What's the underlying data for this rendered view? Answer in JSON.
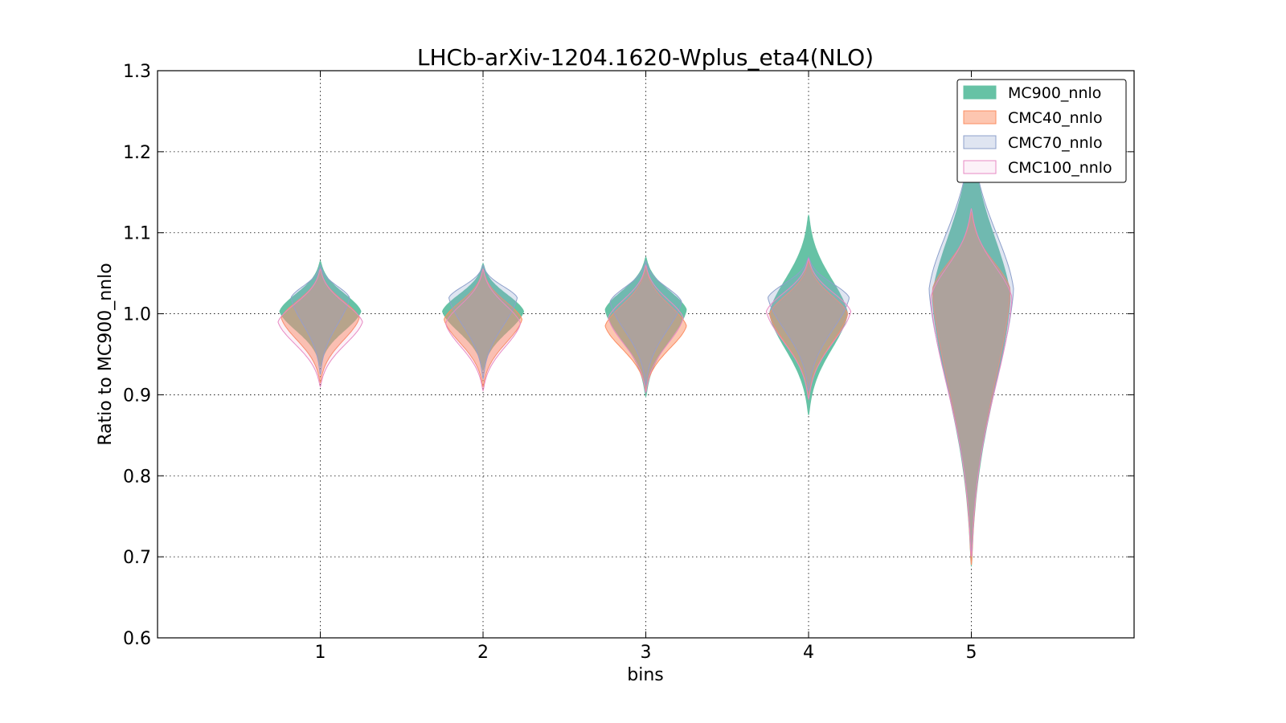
{
  "chart_data": {
    "type": "violin",
    "title": "LHCb-arXiv-1204.1620-Wplus_eta4(NLO)",
    "xlabel": "bins",
    "ylabel": "Ratio to MC900_nnlo",
    "ylim": [
      0.6,
      1.3
    ],
    "xlim": [
      0,
      6
    ],
    "x_ticks": [
      "1",
      "2",
      "3",
      "4",
      "5"
    ],
    "y_ticks": [
      "0.6",
      "0.7",
      "0.8",
      "0.9",
      "1.0",
      "1.1",
      "1.2",
      "1.3"
    ],
    "grid": true,
    "legend_position": "top-right",
    "series": [
      {
        "name": "MC900_nnlo",
        "fill": "#66c2a5",
        "stroke": "#66c2a5",
        "fill_opacity": 1.0,
        "violins": [
          {
            "bin": 1,
            "min": 0.935,
            "max": 1.065,
            "center": 1.003,
            "half_width": 0.25
          },
          {
            "bin": 2,
            "min": 0.93,
            "max": 1.062,
            "center": 1.003,
            "half_width": 0.25
          },
          {
            "bin": 3,
            "min": 0.898,
            "max": 1.07,
            "center": 1.005,
            "half_width": 0.25
          },
          {
            "bin": 4,
            "min": 0.875,
            "max": 1.122,
            "center": 1.0,
            "half_width": 0.24
          },
          {
            "bin": 5,
            "min": 0.688,
            "max": 1.235,
            "center": 1.02,
            "half_width": 0.24
          }
        ]
      },
      {
        "name": "CMC40_nnlo",
        "fill": "#fc8d62",
        "stroke": "#fc8d62",
        "fill_opacity": 0.5,
        "violins": [
          {
            "bin": 1,
            "min": 0.915,
            "max": 1.055,
            "center": 0.995,
            "half_width": 0.24
          },
          {
            "bin": 2,
            "min": 0.91,
            "max": 1.055,
            "center": 0.993,
            "half_width": 0.24
          },
          {
            "bin": 3,
            "min": 0.905,
            "max": 1.058,
            "center": 0.985,
            "half_width": 0.25
          },
          {
            "bin": 4,
            "min": 0.895,
            "max": 1.065,
            "center": 1.0,
            "half_width": 0.24
          },
          {
            "bin": 5,
            "min": 0.69,
            "max": 1.125,
            "center": 1.03,
            "half_width": 0.24
          }
        ]
      },
      {
        "name": "CMC70_nnlo",
        "fill": "#8da0cb",
        "stroke": "#8da0cb",
        "fill_opacity": 0.28,
        "violins": [
          {
            "bin": 1,
            "min": 0.925,
            "max": 1.06,
            "center": 1.02,
            "half_width": 0.18
          },
          {
            "bin": 2,
            "min": 0.92,
            "max": 1.06,
            "center": 1.02,
            "half_width": 0.21
          },
          {
            "bin": 3,
            "min": 0.912,
            "max": 1.065,
            "center": 1.015,
            "half_width": 0.22
          },
          {
            "bin": 4,
            "min": 0.905,
            "max": 1.07,
            "center": 1.02,
            "half_width": 0.25
          },
          {
            "bin": 5,
            "min": 0.7,
            "max": 1.23,
            "center": 1.03,
            "half_width": 0.26
          }
        ]
      },
      {
        "name": "CMC100_nnlo",
        "fill": "#e78ac3",
        "stroke": "#e78ac3",
        "fill_opacity": 0.12,
        "violins": [
          {
            "bin": 1,
            "min": 0.91,
            "max": 1.055,
            "center": 0.99,
            "half_width": 0.26
          },
          {
            "bin": 2,
            "min": 0.905,
            "max": 1.055,
            "center": 0.988,
            "half_width": 0.23
          },
          {
            "bin": 3,
            "min": 0.903,
            "max": 1.06,
            "center": 0.995,
            "half_width": 0.23
          },
          {
            "bin": 4,
            "min": 0.895,
            "max": 1.068,
            "center": 1.003,
            "half_width": 0.26
          },
          {
            "bin": 5,
            "min": 0.7,
            "max": 1.13,
            "center": 1.02,
            "half_width": 0.25
          }
        ]
      }
    ]
  }
}
